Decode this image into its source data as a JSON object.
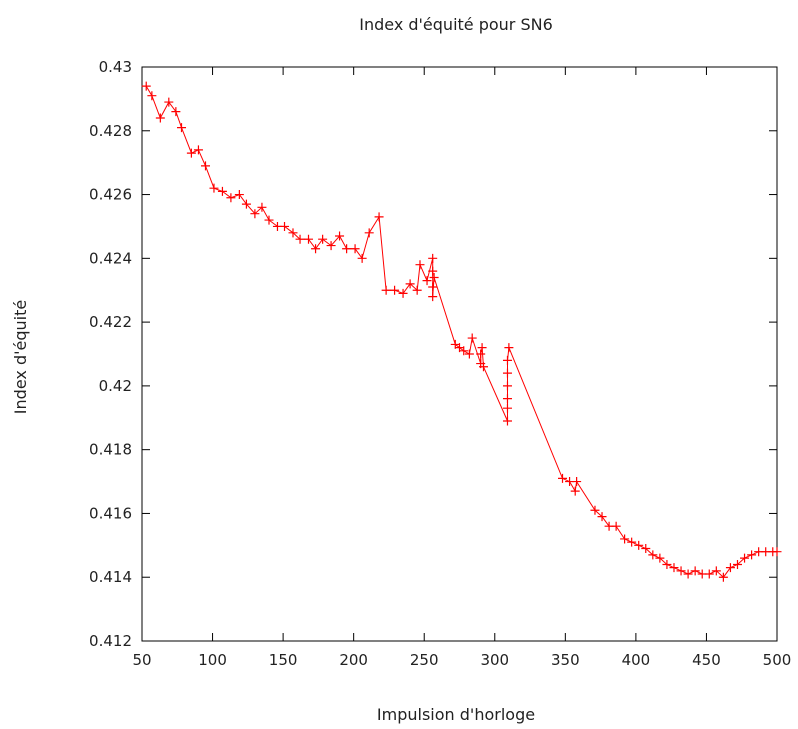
{
  "chart_data": {
    "type": "line",
    "title": "Index d'équité pour SN6",
    "xlabel": "Impulsion d'horloge",
    "ylabel": "Index d'équité",
    "xlim": [
      50,
      500
    ],
    "ylim": [
      0.412,
      0.43
    ],
    "x_ticks": [
      50,
      100,
      150,
      200,
      250,
      300,
      350,
      400,
      450,
      500
    ],
    "x_tick_labels": [
      "50",
      "100",
      "150",
      "200",
      "250",
      "300",
      "350",
      "400",
      "450",
      "500"
    ],
    "y_ticks": [
      0.412,
      0.414,
      0.416,
      0.418,
      0.42,
      0.422,
      0.424,
      0.426,
      0.428,
      0.43
    ],
    "y_tick_labels": [
      "0.412",
      "0.414",
      "0.416",
      "0.418",
      "0.42",
      "0.422",
      "0.424",
      "0.426",
      "0.428",
      "0.43"
    ],
    "grid": false,
    "color": "#ff0000",
    "marker": "plus",
    "series": [
      {
        "points": [
          [
            53,
            0.4294
          ],
          [
            57,
            0.4291
          ],
          [
            63,
            0.4284
          ],
          [
            69,
            0.4289
          ],
          [
            74,
            0.4286
          ],
          [
            78,
            0.4281
          ],
          [
            85,
            0.4273
          ],
          [
            90,
            0.4274
          ],
          [
            95,
            0.4269
          ],
          [
            101,
            0.4262
          ],
          [
            107,
            0.4261
          ],
          [
            113,
            0.4259
          ],
          [
            119,
            0.426
          ],
          [
            124,
            0.4257
          ],
          [
            130,
            0.4254
          ],
          [
            135,
            0.4256
          ],
          [
            140,
            0.4252
          ],
          [
            146,
            0.425
          ],
          [
            151,
            0.425
          ],
          [
            157,
            0.4248
          ],
          [
            162,
            0.4246
          ],
          [
            168,
            0.4246
          ],
          [
            173,
            0.4243
          ],
          [
            178,
            0.4246
          ],
          [
            184,
            0.4244
          ],
          [
            190,
            0.4247
          ],
          [
            195,
            0.4243
          ],
          [
            201,
            0.4243
          ],
          [
            206,
            0.424
          ],
          [
            211,
            0.4248
          ],
          [
            218,
            0.4253
          ],
          [
            223,
            0.423
          ],
          [
            229,
            0.423
          ],
          [
            235,
            0.4229
          ],
          [
            240,
            0.4232
          ],
          [
            245,
            0.423
          ],
          [
            247,
            0.4238
          ],
          [
            252,
            0.4233
          ],
          [
            256,
            0.424
          ],
          [
            256,
            0.4236
          ],
          [
            256,
            0.4231
          ],
          [
            256,
            0.4228
          ],
          [
            257,
            0.4234
          ],
          [
            272,
            0.4213
          ],
          [
            275,
            0.4212
          ],
          [
            278,
            0.4211
          ],
          [
            282,
            0.421
          ],
          [
            284,
            0.4215
          ],
          [
            290,
            0.4207
          ],
          [
            290,
            0.421
          ],
          [
            291,
            0.4212
          ],
          [
            292,
            0.4206
          ],
          [
            309,
            0.4189
          ],
          [
            309,
            0.4193
          ],
          [
            309,
            0.4196
          ],
          [
            309,
            0.42
          ],
          [
            309,
            0.4204
          ],
          [
            309,
            0.4208
          ],
          [
            310,
            0.4212
          ],
          [
            348,
            0.4171
          ],
          [
            353,
            0.417
          ],
          [
            357,
            0.4167
          ],
          [
            358,
            0.417
          ],
          [
            371,
            0.4161
          ],
          [
            376,
            0.4159
          ],
          [
            381,
            0.4156
          ],
          [
            386,
            0.4156
          ],
          [
            392,
            0.4152
          ],
          [
            397,
            0.4151
          ],
          [
            402,
            0.415
          ],
          [
            407,
            0.4149
          ],
          [
            412,
            0.4147
          ],
          [
            417,
            0.4146
          ],
          [
            422,
            0.4144
          ],
          [
            427,
            0.4143
          ],
          [
            432,
            0.4142
          ],
          [
            437,
            0.4141
          ],
          [
            442,
            0.4142
          ],
          [
            447,
            0.4141
          ],
          [
            452,
            0.4141
          ],
          [
            457,
            0.4142
          ],
          [
            462,
            0.414
          ],
          [
            467,
            0.4143
          ],
          [
            472,
            0.4144
          ],
          [
            477,
            0.4146
          ],
          [
            482,
            0.4147
          ],
          [
            487,
            0.4148
          ],
          [
            492,
            0.4148
          ],
          [
            497,
            0.4148
          ],
          [
            500,
            0.4148
          ]
        ]
      }
    ]
  }
}
